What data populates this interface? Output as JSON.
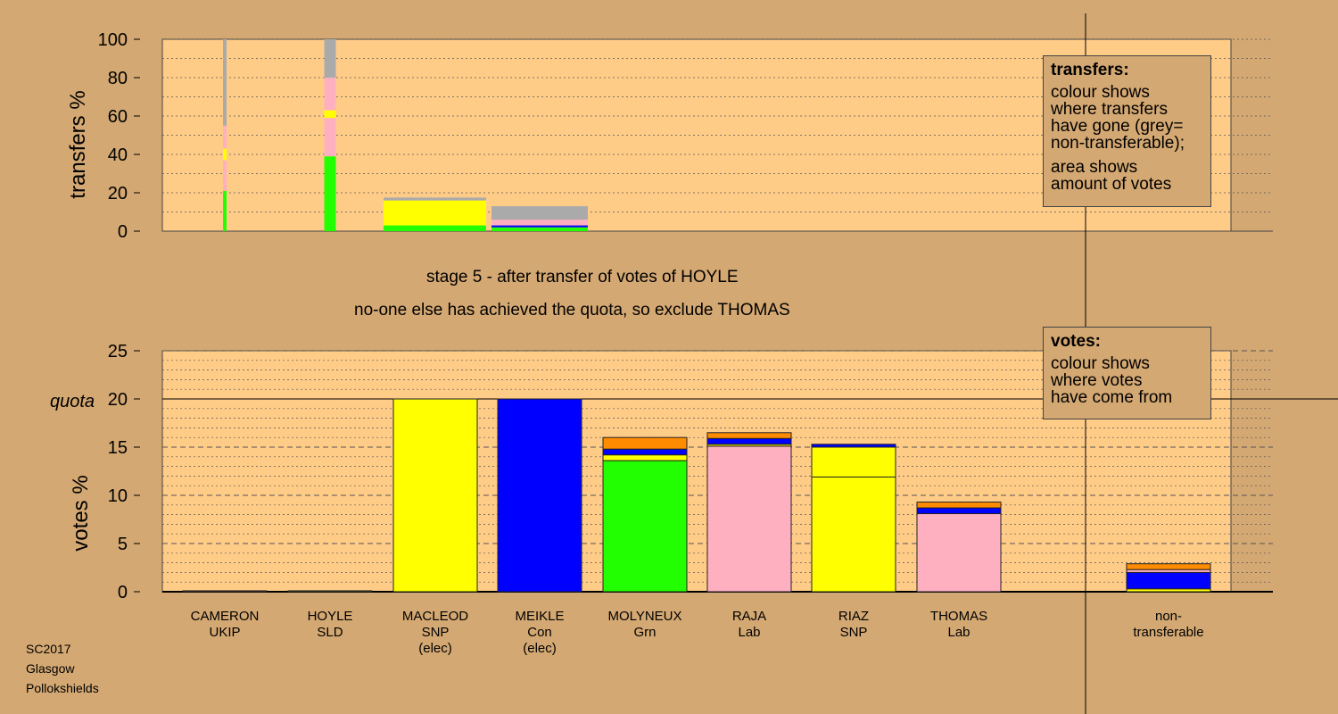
{
  "top_chart": {
    "ylabel": "transfers %",
    "yticks": [
      "0",
      "20",
      "40",
      "60",
      "80",
      "100"
    ]
  },
  "bottom_chart": {
    "ylabel": "votes %",
    "yticks": [
      "0",
      "5",
      "10",
      "15",
      "20",
      "25"
    ],
    "quota_label": "quota"
  },
  "captions": {
    "line1": "stage 5 - after transfer of votes of HOYLE",
    "line2": "no-one else has achieved the quota, so exclude THOMAS"
  },
  "legends": {
    "transfers": {
      "title": "transfers:",
      "lines": [
        "colour shows",
        "where transfers",
        "have gone (grey=",
        "non-transferable);",
        "area shows",
        "amount of votes"
      ]
    },
    "votes": {
      "title": "votes:",
      "lines": [
        "colour shows",
        "where votes",
        "have come from"
      ]
    }
  },
  "candidates": [
    {
      "name": "CAMERON",
      "party": "UKIP",
      "status": ""
    },
    {
      "name": "HOYLE",
      "party": "SLD",
      "status": ""
    },
    {
      "name": "MACLEOD",
      "party": "SNP",
      "status": "(elec)"
    },
    {
      "name": "MEIKLE",
      "party": "Con",
      "status": "(elec)"
    },
    {
      "name": "MOLYNEUX",
      "party": "Grn",
      "status": ""
    },
    {
      "name": "RAJA",
      "party": "Lab",
      "status": ""
    },
    {
      "name": "RIAZ",
      "party": "SNP",
      "status": ""
    },
    {
      "name": "THOMAS",
      "party": "Lab",
      "status": ""
    },
    {
      "name": "non-",
      "party": "transferable",
      "status": ""
    }
  ],
  "footer": [
    "SC2017",
    "Glasgow",
    "Pollokshields"
  ],
  "colors": {
    "background": "#d4a872",
    "plot_bg": "#ffcc88",
    "ukip": "#ff8c00",
    "sld": "#ffff00",
    "snp": "#ffff00",
    "con": "#0000ff",
    "grn": "#22ff00",
    "lab": "#ffb0c0",
    "nontransferable": "#aaaaaa"
  },
  "chart_data": [
    {
      "type": "bar",
      "title": "",
      "ylabel": "transfers %",
      "ylim": [
        0,
        100
      ],
      "grid": true,
      "note": "stacked transfer columns",
      "thin_columns": [
        {
          "candidate": "CAMERON",
          "segments": [
            {
              "party": "Grn",
              "value": 21
            },
            {
              "party": "Lab",
              "value": 16
            },
            {
              "party": "SNP",
              "value": 6
            },
            {
              "party": "Lab",
              "value": 12
            },
            {
              "party": "Non-transferable",
              "value": 45
            }
          ]
        },
        {
          "candidate": "HOYLE",
          "segments": [
            {
              "party": "Grn",
              "value": 39
            },
            {
              "party": "Lab",
              "value": 20
            },
            {
              "party": "SNP",
              "value": 4
            },
            {
              "party": "Lab",
              "value": 17
            },
            {
              "party": "Non-transferable",
              "value": 20
            }
          ]
        }
      ],
      "wide_columns": [
        {
          "candidate": "MACLEOD",
          "segments": [
            {
              "party": "Grn",
              "value": 3
            },
            {
              "party": "SNP",
              "value": 13
            },
            {
              "party": "Non-transferable",
              "value": 1.5
            }
          ]
        },
        {
          "candidate": "MEIKLE",
          "segments": [
            {
              "party": "Grn",
              "value": 2
            },
            {
              "party": "Con",
              "value": 1
            },
            {
              "party": "Lab",
              "value": 3
            },
            {
              "party": "Non-transferable",
              "value": 7
            }
          ]
        }
      ]
    },
    {
      "type": "bar",
      "title": "",
      "ylabel": "votes %",
      "ylim": [
        0,
        25
      ],
      "quota": 20,
      "grid": true,
      "note": "stacked by origin of votes",
      "categories": [
        "CAMERON",
        "HOYLE",
        "MACLEOD",
        "MEIKLE",
        "MOLYNEUX",
        "RAJA",
        "RIAZ",
        "THOMAS",
        "non-transferable"
      ],
      "stacks": [
        [
          {
            "party": "UKIP",
            "value": 0.1
          }
        ],
        [
          {
            "party": "SLD",
            "value": 0.1
          }
        ],
        [
          {
            "party": "SNP",
            "value": 20
          }
        ],
        [
          {
            "party": "Con",
            "value": 20
          }
        ],
        [
          {
            "party": "Grn",
            "value": 13.6
          },
          {
            "party": "SNP",
            "value": 0.6
          },
          {
            "party": "Con",
            "value": 0.6
          },
          {
            "party": "UKIP",
            "value": 1.2
          }
        ],
        [
          {
            "party": "Lab",
            "value": 15.1
          },
          {
            "party": "SNP",
            "value": 0.2
          },
          {
            "party": "Con",
            "value": 0.6
          },
          {
            "party": "UKIP",
            "value": 0.6
          }
        ],
        [
          {
            "party": "SNP",
            "value": 11.9
          },
          {
            "party": "SNP",
            "value": 3.1
          },
          {
            "party": "Con",
            "value": 0.3
          }
        ],
        [
          {
            "party": "Lab",
            "value": 8.1
          },
          {
            "party": "Con",
            "value": 0.6
          },
          {
            "party": "UKIP",
            "value": 0.6
          }
        ],
        [
          {
            "party": "SNP",
            "value": 0.3
          },
          {
            "party": "Con",
            "value": 1.7
          },
          {
            "party": "Lab",
            "value": 0.3
          },
          {
            "party": "UKIP",
            "value": 0.6
          }
        ]
      ]
    }
  ]
}
